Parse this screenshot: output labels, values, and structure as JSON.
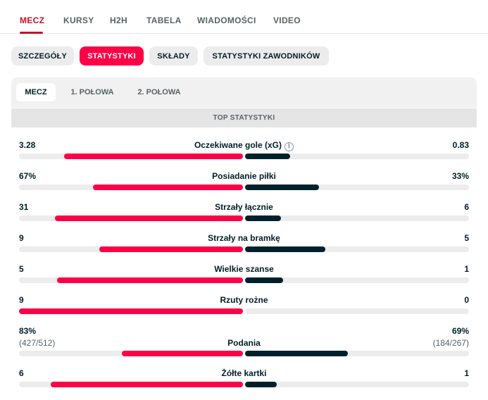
{
  "nav": {
    "tabs": [
      "MECZ",
      "KURSY",
      "H2H",
      "TABELA",
      "WIADOMOŚCI",
      "VIDEO"
    ],
    "active": "MECZ"
  },
  "subtabs": {
    "items": [
      "SZCZEGÓŁY",
      "STATYSTYKI",
      "SKŁADY",
      "STATYSTYKI ZAWODNIKÓW"
    ],
    "active": "STATYSTYKI"
  },
  "periods": {
    "items": [
      "MECZ",
      "1. POŁOWA",
      "2. POŁOWA"
    ],
    "active": "MECZ"
  },
  "section": {
    "title": "TOP STATYSTYKI"
  },
  "stats": [
    {
      "name": "Oczekiwane gole (xG)",
      "home": "3.28",
      "away": "0.83",
      "home_share": 0.8,
      "away_share": 0.2,
      "info": true
    },
    {
      "name": "Posiadanie piłki",
      "home": "67%",
      "away": "33%",
      "home_share": 0.67,
      "away_share": 0.33
    },
    {
      "name": "Strzały łącznie",
      "home": "31",
      "away": "6",
      "home_share": 0.84,
      "away_share": 0.16
    },
    {
      "name": "Strzały na bramkę",
      "home": "9",
      "away": "5",
      "home_share": 0.64,
      "away_share": 0.36
    },
    {
      "name": "Wielkie szanse",
      "home": "5",
      "away": "1",
      "home_share": 0.83,
      "away_share": 0.17
    },
    {
      "name": "Rzuty rożne",
      "home": "9",
      "away": "0",
      "home_share": 1.0,
      "away_share": 0.0
    },
    {
      "name": "Podania",
      "home": "83%",
      "away": "69%",
      "home_sub": "(427/512)",
      "away_sub": "(184/267)",
      "home_share": 0.54,
      "away_share": 0.46
    },
    {
      "name": "Żółte kartki",
      "home": "6",
      "away": "1",
      "home_share": 0.86,
      "away_share": 0.14
    }
  ],
  "colors": {
    "accent": "#ff0046",
    "active_tab": "#c8102e",
    "away_bar": "#00212b",
    "track": "#ececec"
  }
}
